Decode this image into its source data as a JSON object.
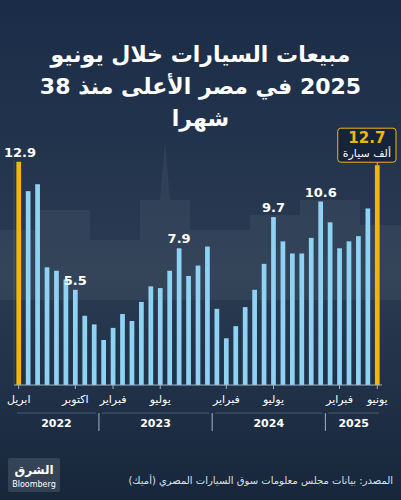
{
  "chart_data": {
    "type": "bar",
    "title": "مبيعات السيارات خلال يونيو 2025 في مصر الأعلى منذ 38 شهرا",
    "unit": "ألف سيارة",
    "source": "المصدر: بيانات مجلس معلومات سوق السيارات المصري (أميك)",
    "logo": {
      "name": "الشرق",
      "partner": "Bloomberg"
    },
    "categories": [
      "ابريل",
      null,
      null,
      null,
      null,
      null,
      "اكتوبر",
      null,
      null,
      null,
      "فبراير",
      null,
      null,
      null,
      null,
      "يوليو",
      null,
      null,
      null,
      null,
      null,
      null,
      "فبراير",
      null,
      null,
      null,
      null,
      "يوليو",
      null,
      null,
      null,
      null,
      null,
      null,
      "فبراير",
      null,
      null,
      null,
      "يونيو"
    ],
    "values": [
      12.9,
      11.2,
      11.6,
      6.8,
      6.6,
      6.1,
      5.5,
      4.0,
      3.5,
      2.6,
      3.3,
      4.1,
      3.7,
      4.8,
      5.7,
      5.6,
      6.6,
      7.9,
      6.3,
      6.9,
      8.0,
      4.4,
      2.7,
      3.4,
      4.5,
      5.5,
      7.0,
      9.7,
      8.3,
      7.6,
      7.6,
      8.5,
      10.6,
      9.4,
      7.9,
      8.3,
      8.6,
      10.2,
      12.7
    ],
    "value_labels": [
      "12.9",
      null,
      null,
      null,
      null,
      null,
      "5.5",
      null,
      null,
      null,
      null,
      null,
      null,
      null,
      null,
      null,
      null,
      "7.9",
      null,
      null,
      null,
      null,
      null,
      null,
      null,
      null,
      null,
      "9.7",
      null,
      null,
      null,
      null,
      "10.6",
      null,
      null,
      null,
      null,
      null,
      "12.7"
    ],
    "colors": [
      "#f2b705",
      "#8fd3f4",
      "#8fd3f4",
      "#8fd3f4",
      "#8fd3f4",
      "#8fd3f4",
      "#8fd3f4",
      "#8fd3f4",
      "#8fd3f4",
      "#8fd3f4",
      "#8fd3f4",
      "#8fd3f4",
      "#8fd3f4",
      "#8fd3f4",
      "#8fd3f4",
      "#8fd3f4",
      "#8fd3f4",
      "#8fd3f4",
      "#8fd3f4",
      "#8fd3f4",
      "#8fd3f4",
      "#8fd3f4",
      "#8fd3f4",
      "#8fd3f4",
      "#8fd3f4",
      "#8fd3f4",
      "#8fd3f4",
      "#8fd3f4",
      "#8fd3f4",
      "#8fd3f4",
      "#8fd3f4",
      "#8fd3f4",
      "#8fd3f4",
      "#8fd3f4",
      "#8fd3f4",
      "#8fd3f4",
      "#8fd3f4",
      "#8fd3f4",
      "#f2b705"
    ],
    "year_groups": [
      {
        "label": "2022",
        "months": 9
      },
      {
        "label": "2023",
        "months": 12
      },
      {
        "label": "2024",
        "months": 12
      },
      {
        "label": "2025",
        "months": 6
      }
    ],
    "ylim": [
      0,
      13
    ],
    "tick_labels": "x",
    "grid": false
  }
}
